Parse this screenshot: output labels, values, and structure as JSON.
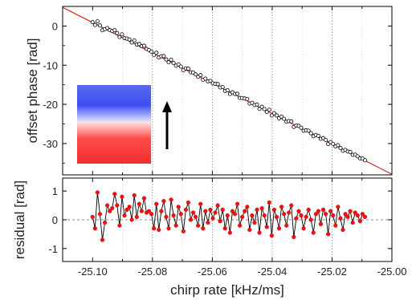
{
  "chart_data": [
    {
      "type": "scatter",
      "panel": "top",
      "title": "",
      "xlabel": "",
      "ylabel": "offset phase [rad]",
      "xlim": [
        -25.11,
        -25.0
      ],
      "ylim": [
        -38,
        5
      ],
      "grid": "vertical dotted at major x ticks",
      "yticks": [
        "0",
        "-10",
        "-20",
        "-30"
      ],
      "x_range_of_data": [
        -25.1,
        -25.009
      ],
      "fit_line": {
        "x": [
          -25.11,
          -25.0
        ],
        "y": [
          4.75,
          -37.85
        ]
      },
      "series": [
        {
          "marker": "open circle",
          "x": [],
          "y": []
        }
      ],
      "inset": {
        "description_colors": [
          "#2233ee",
          "#ee2222"
        ],
        "arrow": "up"
      }
    },
    {
      "type": "line",
      "panel": "bottom",
      "title": "",
      "xlabel": "chirp rate [kHz/ms]",
      "ylabel": "residual [rad]",
      "xlim": [
        -25.11,
        -25.0
      ],
      "ylim": [
        -1.45,
        1.45
      ],
      "grid": "vertical dotted at major x ticks, dashed horizontal at 0",
      "yticks": [
        "1",
        "0",
        "-1"
      ],
      "xticks": [
        "-25.10",
        "-25.08",
        "-25.06",
        "-25.04",
        "-25.02",
        "-25.00"
      ],
      "x_range_of_data": [
        -25.1,
        -25.009
      ],
      "series": [
        {
          "marker": "red filled circle",
          "line_color": "#000000",
          "marker_color": "#ee1111",
          "y": [
            0.1,
            -0.3,
            0.95,
            0.2,
            -0.7,
            -0.1,
            0.5,
            0.3,
            0.4,
            0.9,
            0.5,
            -0.2,
            0.8,
            0.15,
            0.35,
            0.45,
            0.0,
            0.85,
            0.1,
            0.55,
            0.3,
            0.75,
            0.25,
            0.3,
            0.2,
            -0.3,
            0.55,
            -0.35,
            0.3,
            0.65,
            0.1,
            -0.3,
            0.7,
            0.15,
            -0.2,
            0.45,
            0.2,
            -0.4,
            0.35,
            0.6,
            0.0,
            0.25,
            0.1,
            -0.2,
            0.55,
            -0.3,
            0.3,
            -0.1,
            0.35,
            0.05,
            0.25,
            0.5,
            -0.05,
            0.35,
            -0.3,
            0.15,
            -0.45,
            0.3,
            0.2,
            0.55,
            -0.2,
            0.1,
            0.3,
            0.45,
            -0.35,
            0.15,
            -0.1,
            0.35,
            -0.45,
            0.4,
            0.15,
            -0.25,
            0.6,
            -0.55,
            0.35,
            0.1,
            -0.3,
            0.45,
            0.2,
            -0.2,
            0.25,
            0.5,
            -0.6,
            0.05,
            0.3,
            0.15,
            -0.3,
            0.1,
            0.35,
            0.0,
            -0.45,
            0.2,
            0.3,
            -0.15,
            0.35,
            0.2,
            -0.5,
            0.3,
            0.15,
            -0.2,
            0.45,
            0.05,
            -0.35,
            0.2,
            0.1,
            0.3,
            -0.1,
            0.25,
            0.15,
            -0.05,
            0.2,
            0.1
          ]
        }
      ]
    }
  ]
}
